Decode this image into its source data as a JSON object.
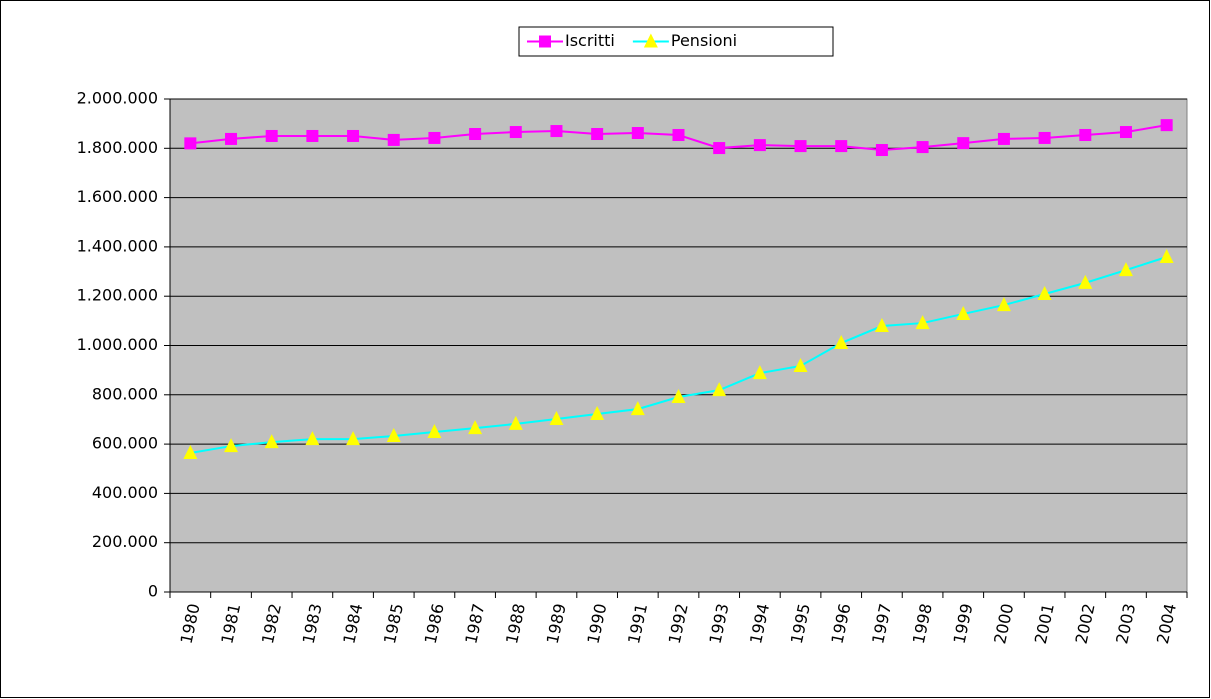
{
  "chart_data": {
    "type": "line",
    "categories": [
      "1980",
      "1981",
      "1982",
      "1983",
      "1984",
      "1985",
      "1986",
      "1987",
      "1988",
      "1989",
      "1990",
      "1991",
      "1992",
      "1993",
      "1994",
      "1995",
      "1996",
      "1997",
      "1998",
      "1999",
      "2000",
      "2001",
      "2002",
      "2003",
      "2004"
    ],
    "series": [
      {
        "name": "Iscritti",
        "color": "#ff00ff",
        "marker": "square",
        "marker_color": "#ff00ff",
        "values": [
          1820000,
          1838000,
          1850000,
          1850000,
          1850000,
          1834000,
          1842000,
          1858000,
          1866000,
          1870000,
          1858000,
          1862000,
          1854000,
          1801000,
          1813000,
          1809000,
          1809000,
          1793000,
          1805000,
          1821000,
          1838000,
          1842000,
          1854000,
          1866000,
          1894000
        ]
      },
      {
        "name": "Pensioni",
        "color": "#00ffff",
        "marker": "triangle",
        "marker_color": "#ffff00",
        "values": [
          564000,
          592000,
          608000,
          620000,
          620000,
          633000,
          649000,
          665000,
          682000,
          702000,
          722000,
          742000,
          791000,
          819000,
          888000,
          917000,
          1010000,
          1079000,
          1091000,
          1128000,
          1164000,
          1209000,
          1254000,
          1306000,
          1359000
        ]
      }
    ],
    "ylim": [
      0,
      2000000
    ],
    "yticks": [
      0,
      {
        "value": 200000,
        "label": "200.000"
      },
      {
        "value": 400000,
        "label": "400.000"
      },
      {
        "value": 600000,
        "label": "600.000"
      },
      {
        "value": 800000,
        "label": "800.000"
      },
      {
        "value": 1000000,
        "label": "1.000.000"
      },
      {
        "value": 1200000,
        "label": "1.200.000"
      },
      {
        "value": 1400000,
        "label": "1.400.000"
      },
      {
        "value": 1600000,
        "label": "1.600.000"
      },
      {
        "value": 1800000,
        "label": "1.800.000"
      },
      {
        "value": 2000000,
        "label": "2.000.000"
      }
    ],
    "grid": true,
    "plot_background": "#c0c0c0",
    "legend": "top"
  }
}
